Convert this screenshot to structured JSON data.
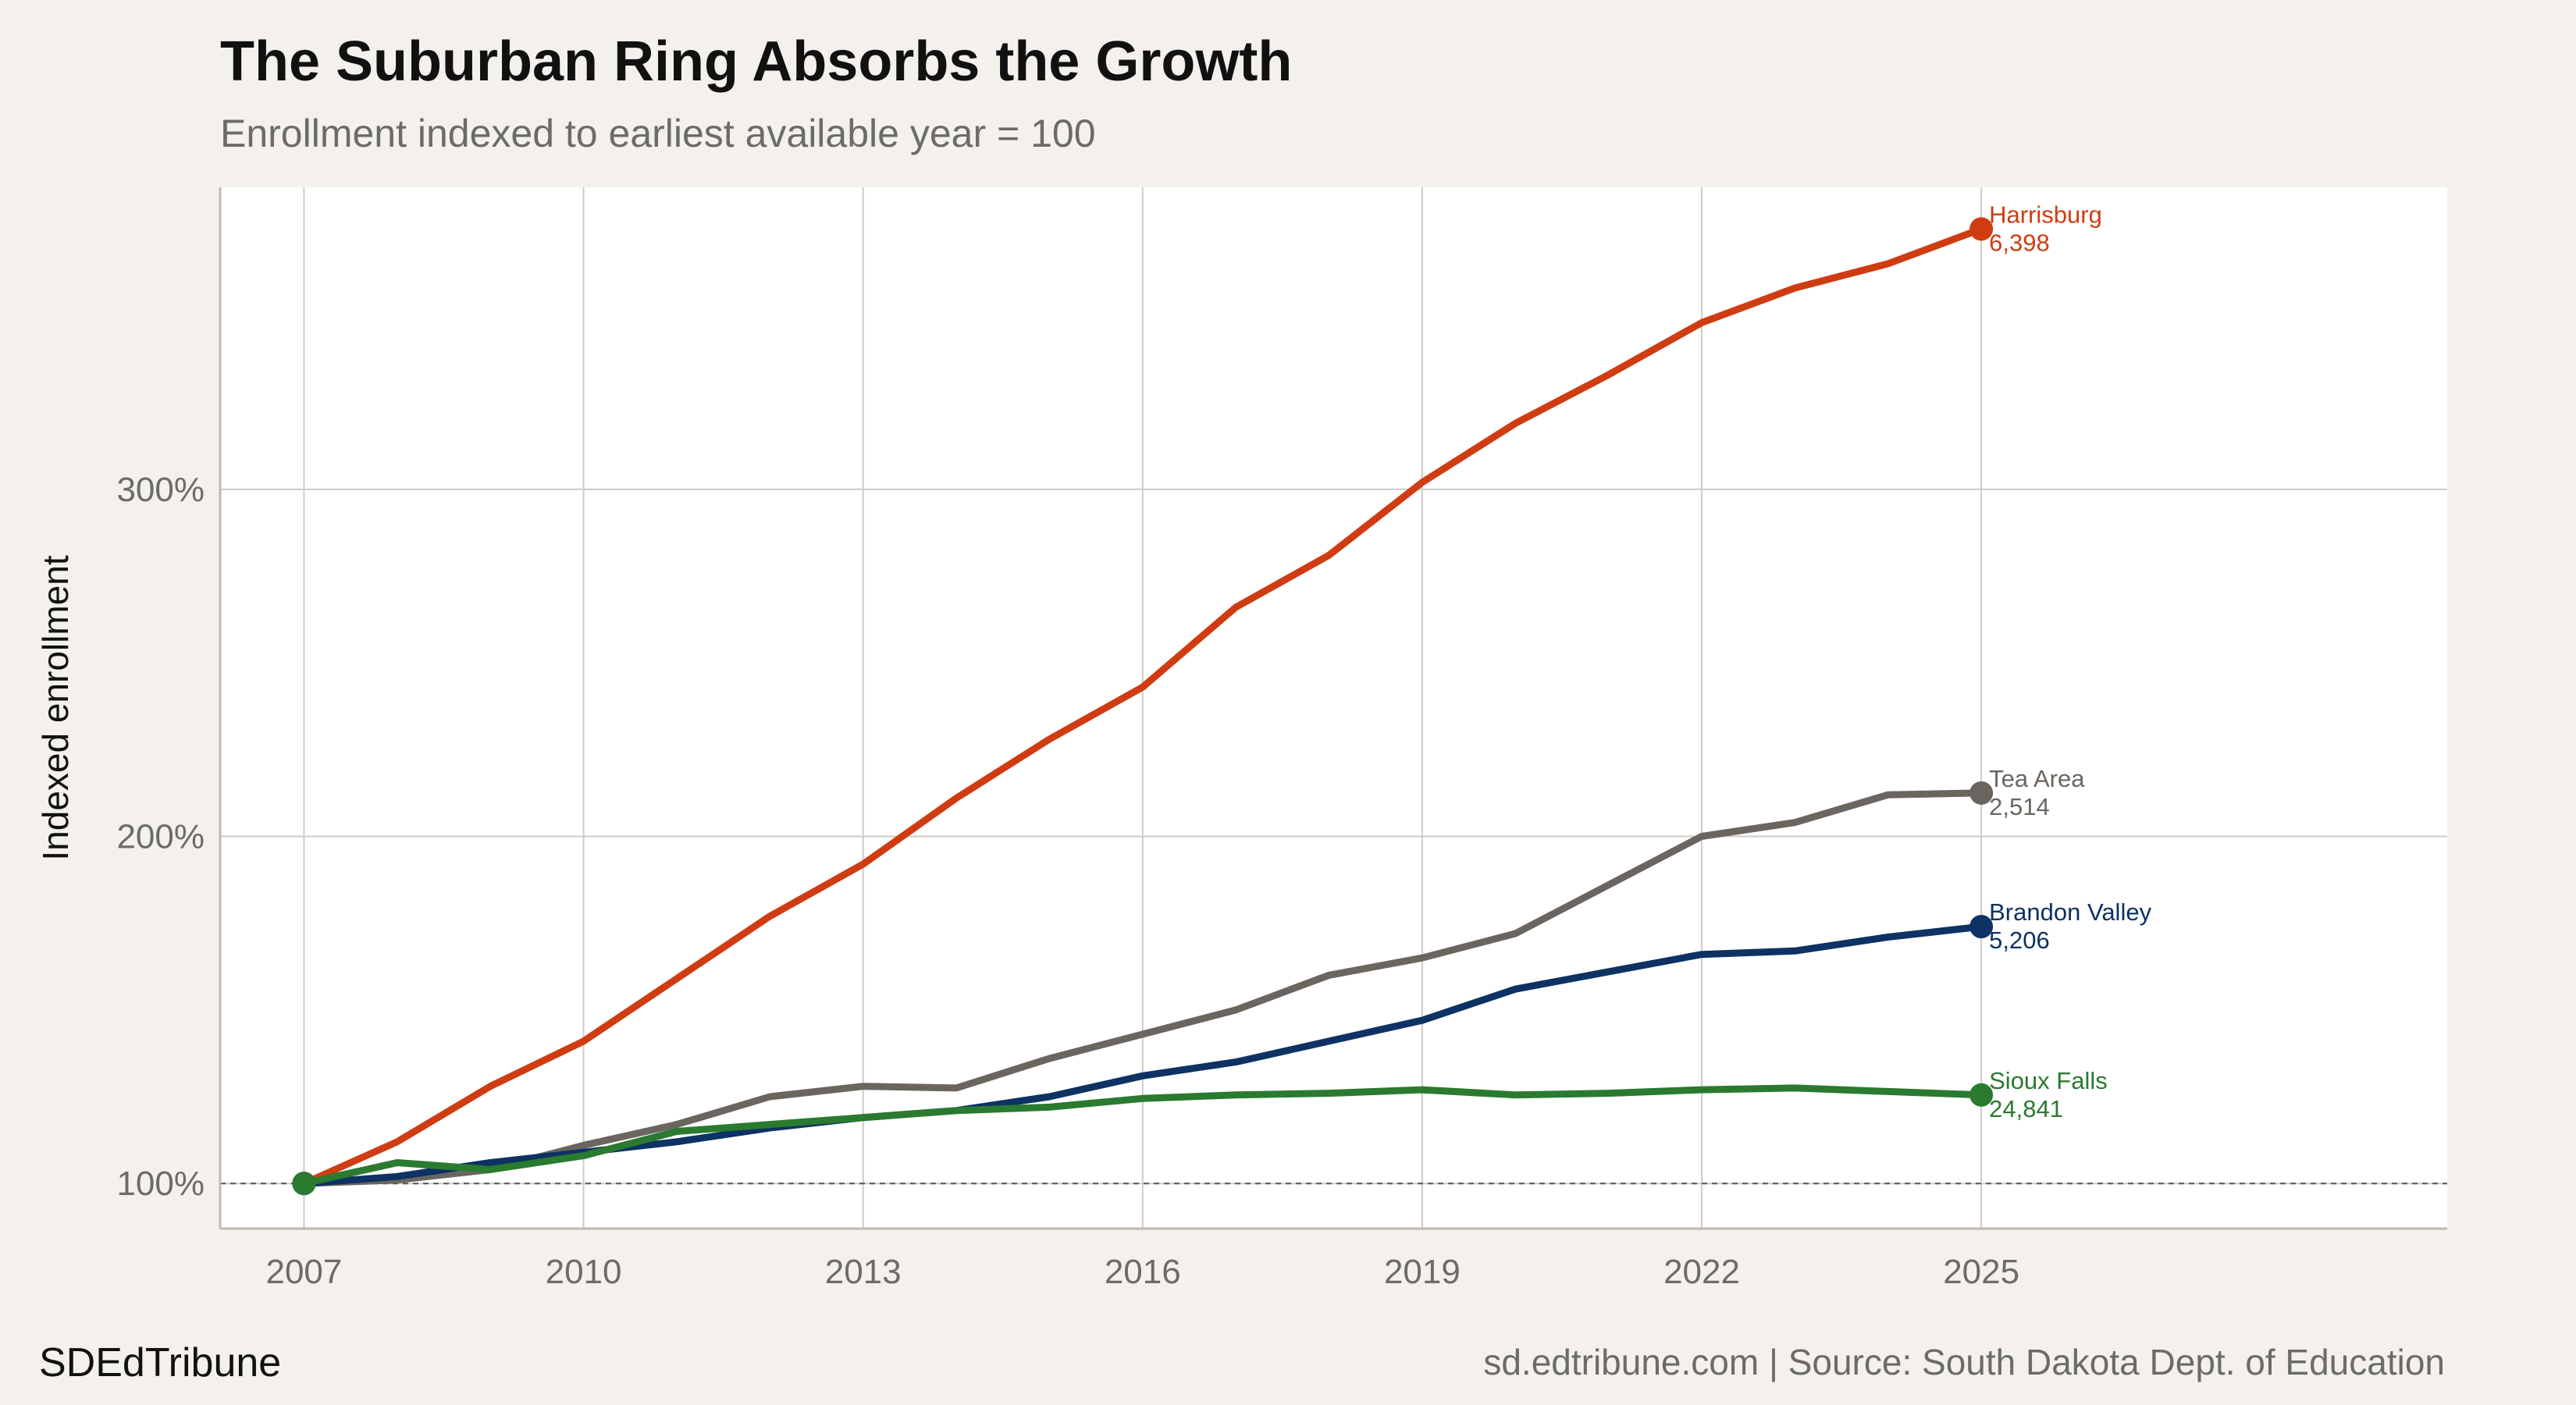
{
  "title": "The Suburban Ring Absorbs the Growth",
  "subtitle": "Enrollment indexed to earliest available year = 100",
  "brand": "SDEdTribune",
  "caption": "sd.edtribune.com | Source: South Dakota Dept. of Education",
  "chart_data": {
    "type": "line",
    "ylabel": "Indexed enrollment",
    "xlabel": "",
    "xlim": [
      2006.1,
      2030.0
    ],
    "ylim": [
      87,
      387
    ],
    "xticks": [
      2007,
      2010,
      2013,
      2016,
      2019,
      2022,
      2025
    ],
    "yticks": [
      100,
      200,
      300
    ],
    "ytick_format": "%",
    "reference_line": 100,
    "x": [
      2007,
      2008,
      2009,
      2010,
      2011,
      2012,
      2013,
      2014,
      2015,
      2016,
      2017,
      2018,
      2019,
      2020,
      2021,
      2022,
      2023,
      2024,
      2025
    ],
    "series": [
      {
        "name": "Harrisburg",
        "end_value": "6,398",
        "color": "#d03c12",
        "values": [
          100,
          112,
          128,
          141,
          159,
          177,
          192,
          211,
          228,
          243,
          266,
          281,
          302,
          319,
          333,
          348,
          358,
          365,
          375
        ]
      },
      {
        "name": "Tea Area",
        "end_value": "2,514",
        "color": "#6b6560",
        "values": [
          100,
          101,
          104,
          111,
          117,
          125,
          128,
          127.5,
          136,
          143,
          150,
          160,
          165,
          172,
          186,
          200,
          204,
          212,
          212.5
        ]
      },
      {
        "name": "Brandon Valley",
        "end_value": "5,206",
        "color": "#0d3263",
        "values": [
          100,
          102,
          106,
          109,
          112,
          116,
          119,
          121,
          125,
          131,
          135,
          141,
          147,
          156,
          161,
          166,
          167,
          171,
          174
        ]
      },
      {
        "name": "Sioux Falls",
        "end_value": "24,841",
        "color": "#2a7a2f",
        "values": [
          100,
          106,
          104,
          108,
          115,
          117,
          119,
          121,
          122,
          124.5,
          125.5,
          126,
          127,
          125.5,
          126,
          127,
          127.5,
          126.5,
          125.5
        ]
      }
    ]
  }
}
